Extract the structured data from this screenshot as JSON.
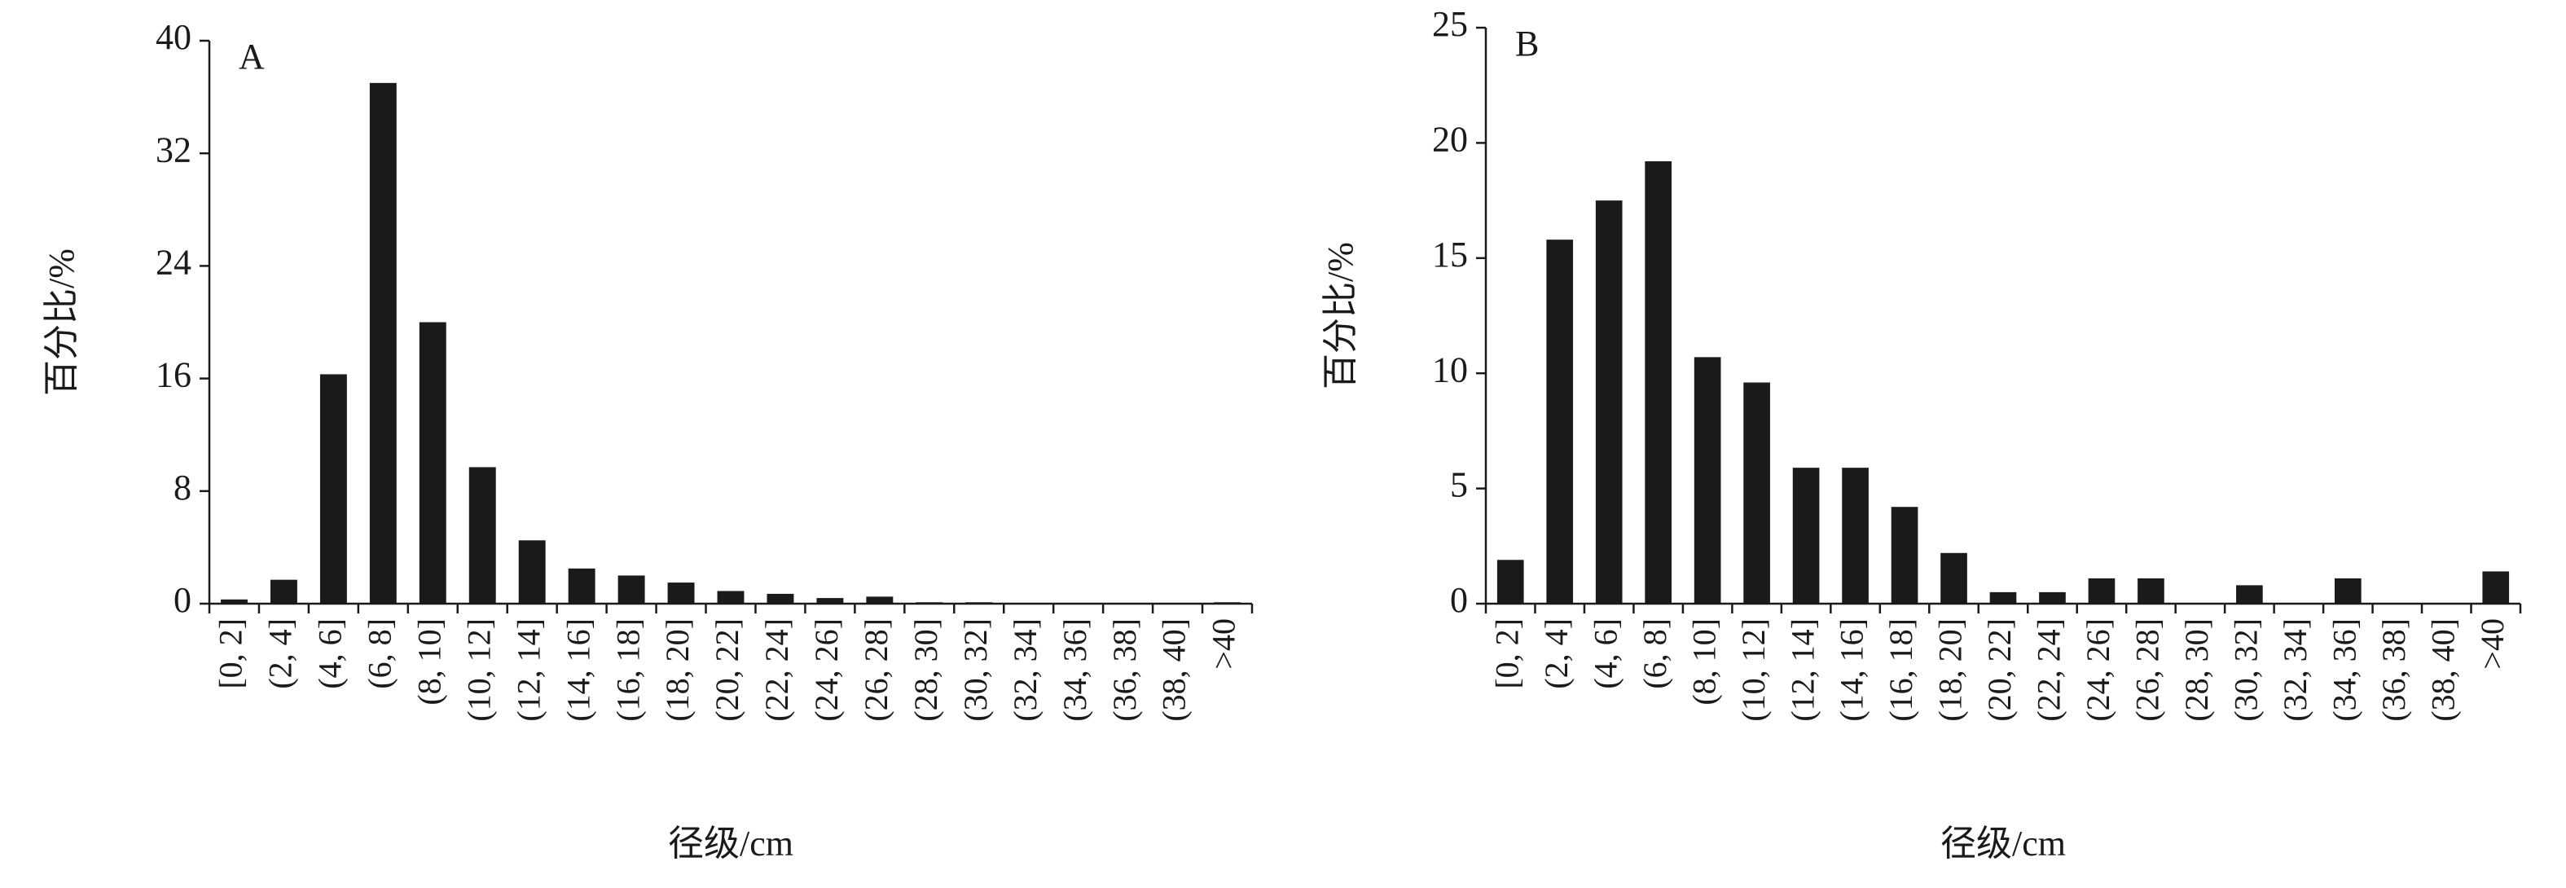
{
  "chart_data": [
    {
      "type": "bar",
      "annotation": "A",
      "x_label": "径级/cm",
      "y_label": "百分比/%",
      "color": "#1a1a1a",
      "categories": [
        "[0, 2]",
        "(2, 4]",
        "(4, 6]",
        "(6, 8]",
        "(8, 10]",
        "(10, 12]",
        "(12, 14]",
        "(14, 16]",
        "(16, 18]",
        "(18, 20]",
        "(20, 22]",
        "(22, 24]",
        "(24, 26]",
        "(26, 28]",
        "(28, 30]",
        "(30, 32]",
        "(32, 34]",
        "(34, 36]",
        "(36, 38]",
        "(38, 40]",
        ">40"
      ],
      "values": [
        0.3,
        1.7,
        16.3,
        37,
        20,
        9.7,
        4.5,
        2.5,
        2,
        1.5,
        0.9,
        0.7,
        0.4,
        0.5,
        0.1,
        0.1,
        0.05,
        0.05,
        0.05,
        0.05,
        0.1
      ],
      "ylim": [
        0,
        40
      ],
      "yticks": [
        0,
        8,
        16,
        24,
        32,
        40
      ]
    },
    {
      "type": "bar",
      "annotation": "B",
      "x_label": "径级/cm",
      "y_label": "百分比/%",
      "color": "#1a1a1a",
      "categories": [
        "[0, 2]",
        "(2, 4]",
        "(4, 6]",
        "(6, 8]",
        "(8, 10]",
        "(10, 12]",
        "(12, 14]",
        "(14, 16]",
        "(16, 18]",
        "(18, 20]",
        "(20, 22]",
        "(22, 24]",
        "(24, 26]",
        "(26, 28]",
        "(28, 30]",
        "(30, 32]",
        "(32, 34]",
        "(34, 36]",
        "(36, 38]",
        "(38, 40]",
        ">40"
      ],
      "values": [
        1.9,
        15.8,
        17.5,
        19.2,
        10.7,
        9.6,
        5.9,
        5.9,
        4.2,
        2.2,
        0.5,
        0.5,
        1.1,
        1.1,
        0,
        0.8,
        0,
        1.1,
        0,
        0,
        1.4
      ],
      "ylim": [
        0,
        25
      ],
      "yticks": [
        0,
        5,
        10,
        15,
        20,
        25
      ]
    }
  ]
}
